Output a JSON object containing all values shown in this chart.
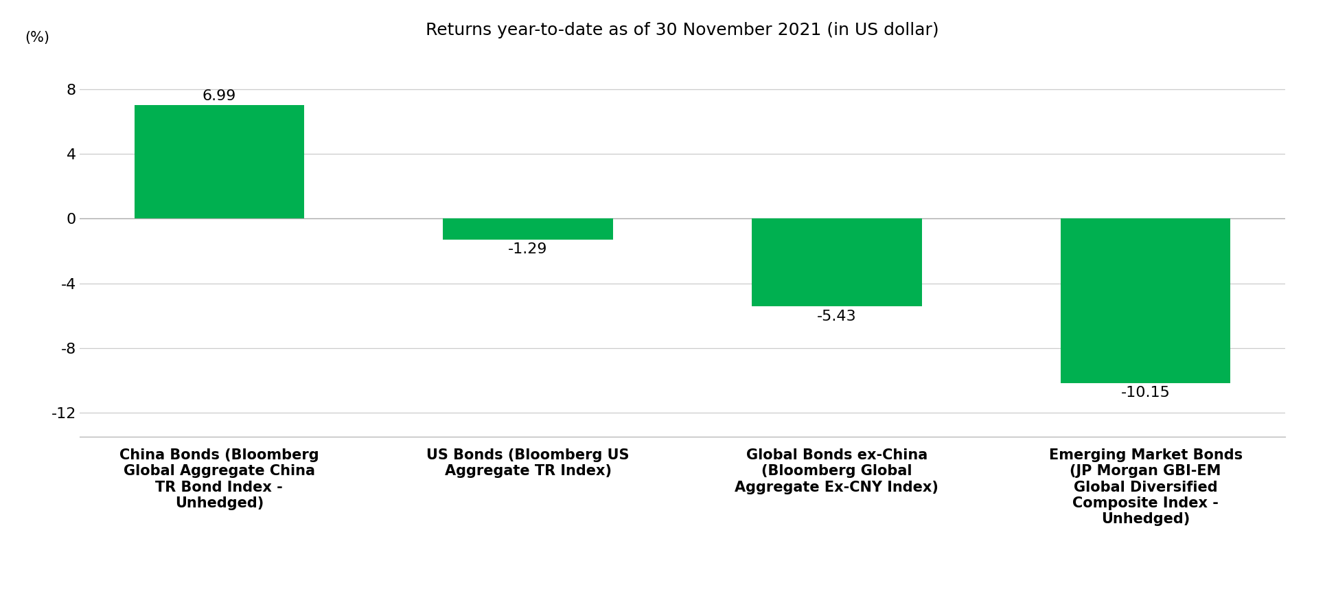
{
  "title": "Returns year-to-date as of 30 November 2021 (in US dollar)",
  "ylabel": "(%)",
  "categories": [
    "China Bonds (Bloomberg\nGlobal Aggregate China\nTR Bond Index -\nUnhedged)",
    "US Bonds (Bloomberg US\nAggregate TR Index)",
    "Global Bonds ex-China\n(Bloomberg Global\nAggregate Ex-CNY Index)",
    "Emerging Market Bonds\n(JP Morgan GBI-EM\nGlobal Diversified\nComposite Index -\nUnhedged)"
  ],
  "values": [
    6.99,
    -1.29,
    -5.43,
    -10.15
  ],
  "bar_color": "#00b050",
  "bar_width": 0.55,
  "ylim": [
    -13.5,
    10.5
  ],
  "yticks": [
    -12,
    -8,
    -4,
    0,
    4,
    8
  ],
  "background_color": "#ffffff",
  "grid_color": "#cccccc",
  "title_fontsize": 18,
  "label_fontsize": 15,
  "tick_fontsize": 16,
  "value_fontsize": 16
}
